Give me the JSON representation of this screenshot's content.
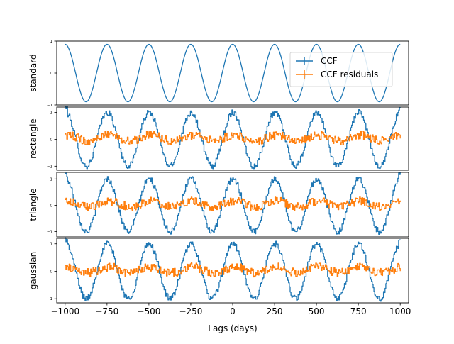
{
  "chart_data": {
    "type": "line",
    "xlabel": "Lags (days)",
    "xlim": [
      -1050,
      1050
    ],
    "x_ticks": [
      -1000,
      -750,
      -500,
      -250,
      0,
      250,
      500,
      750,
      1000
    ],
    "x_tick_labels": [
      "−1000",
      "−750",
      "−500",
      "−250",
      "0",
      "250",
      "500",
      "750",
      "1000"
    ],
    "legend": {
      "location": "upper right of top panel",
      "entries": [
        {
          "label": "CCF",
          "color": "#1f77b4"
        },
        {
          "label": "CCF residuals",
          "color": "#ff7f0e"
        }
      ]
    },
    "panels": [
      {
        "name": "standard",
        "ylabel": "standard",
        "ylim": [
          -1.0,
          1.0
        ],
        "y_ticks": [
          -1,
          0,
          1
        ],
        "y_tick_labels": [
          "−1",
          "0",
          "1"
        ],
        "series": [
          {
            "name": "CCF",
            "color": "#1f77b4",
            "period_days": 250,
            "x": [
              -1000,
              -937.5,
              -875,
              -812.5,
              -750,
              -687.5,
              -625,
              -562.5,
              -500,
              -437.5,
              -375,
              -312.5,
              -250,
              -187.5,
              -125,
              -62.5,
              0,
              62.5,
              125,
              187.5,
              250,
              312.5,
              375,
              437.5,
              500,
              562.5,
              625,
              687.5,
              750,
              812.5,
              875,
              937.5,
              1000
            ],
            "y": [
              0.9,
              0.0,
              -0.9,
              0.0,
              0.9,
              0.0,
              -0.9,
              0.0,
              0.9,
              0.0,
              -0.9,
              0.0,
              0.9,
              0.0,
              -0.9,
              0.0,
              0.9,
              0.0,
              -0.9,
              0.0,
              0.9,
              0.0,
              -0.9,
              0.0,
              0.9,
              0.0,
              -0.9,
              0.0,
              0.9,
              0.0,
              -0.9,
              0.0,
              0.9
            ]
          }
        ]
      },
      {
        "name": "rectangle",
        "ylabel": "rectangle",
        "ylim": [
          -1.15,
          1.2
        ],
        "y_ticks": [
          -1,
          0,
          1
        ],
        "y_tick_labels": [
          "−1",
          "0",
          "1"
        ],
        "series": [
          {
            "name": "CCF",
            "color": "#1f77b4",
            "period_days": 250,
            "x": [
              -1000,
              -937.5,
              -875,
              -812.5,
              -750,
              -687.5,
              -625,
              -562.5,
              -500,
              -437.5,
              -375,
              -312.5,
              -250,
              -187.5,
              -125,
              -62.5,
              0,
              62.5,
              125,
              187.5,
              250,
              312.5,
              375,
              437.5,
              500,
              562.5,
              625,
              687.5,
              750,
              812.5,
              875,
              937.5,
              1000
            ],
            "y": [
              1.2,
              0.0,
              -1.0,
              0.0,
              1.0,
              0.0,
              -1.0,
              0.0,
              1.0,
              0.0,
              -1.0,
              0.0,
              1.0,
              0.0,
              -1.0,
              0.0,
              1.0,
              0.0,
              -1.0,
              0.0,
              1.0,
              0.0,
              -1.0,
              0.0,
              1.0,
              0.0,
              -1.0,
              0.0,
              1.0,
              0.0,
              -1.0,
              0.0,
              1.2
            ]
          },
          {
            "name": "CCF residuals",
            "color": "#ff7f0e",
            "x": [
              -1000,
              -875,
              -750,
              -625,
              -500,
              -375,
              -250,
              -125,
              0,
              125,
              250,
              375,
              500,
              625,
              750,
              875,
              1000
            ],
            "y": [
              0.3,
              0.1,
              0.2,
              0.0,
              0.1,
              -0.1,
              0.3,
              0.0,
              -0.1,
              0.1,
              0.3,
              -0.1,
              0.1,
              0.2,
              0.3,
              0.0,
              0.3
            ]
          }
        ]
      },
      {
        "name": "triangle",
        "ylabel": "triangle",
        "ylim": [
          -1.2,
          1.25
        ],
        "y_ticks": [
          -1,
          0,
          1
        ],
        "y_tick_labels": [
          "−1",
          "0",
          "1"
        ],
        "series": [
          {
            "name": "CCF",
            "color": "#1f77b4",
            "period_days": 250,
            "x": [
              -1000,
              -937.5,
              -875,
              -812.5,
              -750,
              -687.5,
              -625,
              -562.5,
              -500,
              -437.5,
              -375,
              -312.5,
              -250,
              -187.5,
              -125,
              -62.5,
              0,
              62.5,
              125,
              187.5,
              250,
              312.5,
              375,
              437.5,
              500,
              562.5,
              625,
              687.5,
              750,
              812.5,
              875,
              937.5,
              1000
            ],
            "y": [
              1.25,
              0.0,
              -1.05,
              0.0,
              1.0,
              0.0,
              -1.05,
              0.0,
              1.0,
              0.0,
              -1.1,
              0.0,
              1.1,
              0.0,
              -1.05,
              0.0,
              1.0,
              0.0,
              -1.0,
              0.0,
              1.0,
              0.0,
              -1.05,
              0.0,
              1.0,
              0.0,
              -1.05,
              0.0,
              1.0,
              0.0,
              -1.05,
              0.0,
              1.2
            ]
          },
          {
            "name": "CCF residuals",
            "color": "#ff7f0e",
            "x": [
              -1000,
              -875,
              -750,
              -625,
              -500,
              -375,
              -250,
              -125,
              0,
              125,
              250,
              375,
              500,
              625,
              750,
              875,
              1000
            ],
            "y": [
              0.2,
              0.1,
              0.3,
              0.0,
              0.1,
              -0.1,
              0.3,
              0.0,
              -0.1,
              0.1,
              0.3,
              -0.1,
              0.1,
              0.2,
              0.3,
              0.0,
              0.3
            ]
          }
        ]
      },
      {
        "name": "gaussian",
        "ylabel": "gaussian",
        "ylim": [
          -1.15,
          1.2
        ],
        "y_ticks": [
          -1,
          0,
          1
        ],
        "y_tick_labels": [
          "−1",
          "0",
          "1"
        ],
        "series": [
          {
            "name": "CCF",
            "color": "#1f77b4",
            "period_days": 250,
            "x": [
              -1000,
              -937.5,
              -875,
              -812.5,
              -750,
              -687.5,
              -625,
              -562.5,
              -500,
              -437.5,
              -375,
              -312.5,
              -250,
              -187.5,
              -125,
              -62.5,
              0,
              62.5,
              125,
              187.5,
              250,
              312.5,
              375,
              437.5,
              500,
              562.5,
              625,
              687.5,
              750,
              812.5,
              875,
              937.5,
              1000
            ],
            "y": [
              1.2,
              0.0,
              -1.05,
              0.0,
              1.0,
              0.0,
              -1.05,
              0.0,
              1.0,
              0.0,
              -1.1,
              0.0,
              1.0,
              0.0,
              -1.05,
              0.0,
              1.0,
              0.0,
              -1.0,
              0.0,
              1.0,
              0.0,
              -1.05,
              0.0,
              1.0,
              0.0,
              -1.05,
              0.0,
              1.0,
              0.0,
              -1.05,
              0.0,
              1.1
            ]
          },
          {
            "name": "CCF residuals",
            "color": "#ff7f0e",
            "x": [
              -1000,
              -875,
              -750,
              -625,
              -500,
              -375,
              -250,
              -125,
              0,
              125,
              250,
              375,
              500,
              625,
              750,
              875,
              1000
            ],
            "y": [
              0.3,
              0.0,
              0.2,
              0.0,
              0.1,
              -0.1,
              0.3,
              0.0,
              -0.1,
              0.1,
              0.3,
              -0.1,
              0.1,
              0.2,
              0.3,
              0.0,
              0.3
            ]
          }
        ]
      }
    ]
  }
}
